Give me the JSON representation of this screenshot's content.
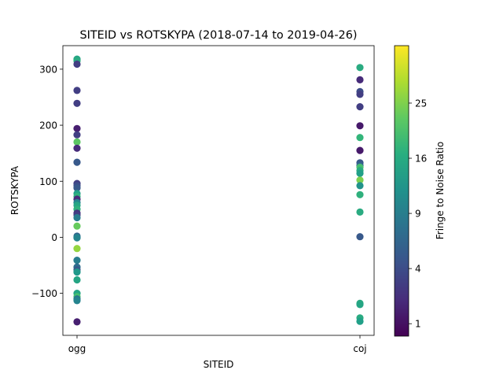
{
  "chart_data": {
    "type": "scatter",
    "title": "SITEID vs ROTSKYPA (2018-07-14 to 2019-04-26)",
    "xlabel": "SITEID",
    "ylabel": "ROTSKYPA",
    "categories": [
      "ogg",
      "coj"
    ],
    "ylim": [
      -175,
      342
    ],
    "yticks": [
      -100,
      0,
      100,
      200,
      300
    ],
    "colorbar": {
      "label": "Fringe to Noise Ratio",
      "colormap": "viridis",
      "scale": "sqrt",
      "range": [
        0.6,
        36.5
      ],
      "ticks": [
        1,
        4,
        9,
        16,
        25
      ]
    },
    "points": [
      {
        "x": "ogg",
        "y": 318,
        "c": 15
      },
      {
        "x": "ogg",
        "y": 315,
        "c": 16
      },
      {
        "x": "ogg",
        "y": 309,
        "c": 3
      },
      {
        "x": "ogg",
        "y": 262,
        "c": 3
      },
      {
        "x": "ogg",
        "y": 239,
        "c": 3
      },
      {
        "x": "ogg",
        "y": 194,
        "c": 1.5
      },
      {
        "x": "ogg",
        "y": 183,
        "c": 3
      },
      {
        "x": "ogg",
        "y": 170,
        "c": 22
      },
      {
        "x": "ogg",
        "y": 159,
        "c": 2
      },
      {
        "x": "ogg",
        "y": 134,
        "c": 5
      },
      {
        "x": "ogg",
        "y": 96,
        "c": 3
      },
      {
        "x": "ogg",
        "y": 92,
        "c": 4
      },
      {
        "x": "ogg",
        "y": 88,
        "c": 5
      },
      {
        "x": "ogg",
        "y": 78,
        "c": 14
      },
      {
        "x": "ogg",
        "y": 73,
        "c": 17
      },
      {
        "x": "ogg",
        "y": 68,
        "c": 2
      },
      {
        "x": "ogg",
        "y": 62,
        "c": 10
      },
      {
        "x": "ogg",
        "y": 57,
        "c": 15
      },
      {
        "x": "ogg",
        "y": 50,
        "c": 17
      },
      {
        "x": "ogg",
        "y": 43,
        "c": 2.5
      },
      {
        "x": "ogg",
        "y": 40,
        "c": 3
      },
      {
        "x": "ogg",
        "y": 35,
        "c": 9
      },
      {
        "x": "ogg",
        "y": 20,
        "c": 23
      },
      {
        "x": "ogg",
        "y": 2,
        "c": 6
      },
      {
        "x": "ogg",
        "y": 0,
        "c": 8
      },
      {
        "x": "ogg",
        "y": -1,
        "c": 10
      },
      {
        "x": "ogg",
        "y": -20,
        "c": 27
      },
      {
        "x": "ogg",
        "y": -41,
        "c": 9
      },
      {
        "x": "ogg",
        "y": -53,
        "c": 7
      },
      {
        "x": "ogg",
        "y": -58,
        "c": 5
      },
      {
        "x": "ogg",
        "y": -62,
        "c": 13
      },
      {
        "x": "ogg",
        "y": -76,
        "c": 15
      },
      {
        "x": "ogg",
        "y": -100,
        "c": 15
      },
      {
        "x": "ogg",
        "y": -106,
        "c": 20
      },
      {
        "x": "ogg",
        "y": -110,
        "c": 8
      },
      {
        "x": "ogg",
        "y": -113,
        "c": 10
      },
      {
        "x": "ogg",
        "y": -151,
        "c": 1.5
      },
      {
        "x": "coj",
        "y": 303,
        "c": 16
      },
      {
        "x": "coj",
        "y": 281,
        "c": 2
      },
      {
        "x": "coj",
        "y": 260,
        "c": 4
      },
      {
        "x": "coj",
        "y": 255,
        "c": 3
      },
      {
        "x": "coj",
        "y": 233,
        "c": 3
      },
      {
        "x": "coj",
        "y": 199,
        "c": 1.3
      },
      {
        "x": "coj",
        "y": 178,
        "c": 18
      },
      {
        "x": "coj",
        "y": 155,
        "c": 1.3
      },
      {
        "x": "coj",
        "y": 133,
        "c": 5
      },
      {
        "x": "coj",
        "y": 128,
        "c": 6
      },
      {
        "x": "coj",
        "y": 125,
        "c": 20
      },
      {
        "x": "coj",
        "y": 119,
        "c": 16
      },
      {
        "x": "coj",
        "y": 114,
        "c": 14
      },
      {
        "x": "coj",
        "y": 102,
        "c": 25
      },
      {
        "x": "coj",
        "y": 92,
        "c": 12
      },
      {
        "x": "coj",
        "y": 76,
        "c": 17
      },
      {
        "x": "coj",
        "y": 45,
        "c": 16
      },
      {
        "x": "coj",
        "y": 1,
        "c": 5
      },
      {
        "x": "coj",
        "y": -118,
        "c": 16
      },
      {
        "x": "coj",
        "y": -120,
        "c": 15
      },
      {
        "x": "coj",
        "y": -144,
        "c": 16
      },
      {
        "x": "coj",
        "y": -150,
        "c": 14
      }
    ]
  }
}
